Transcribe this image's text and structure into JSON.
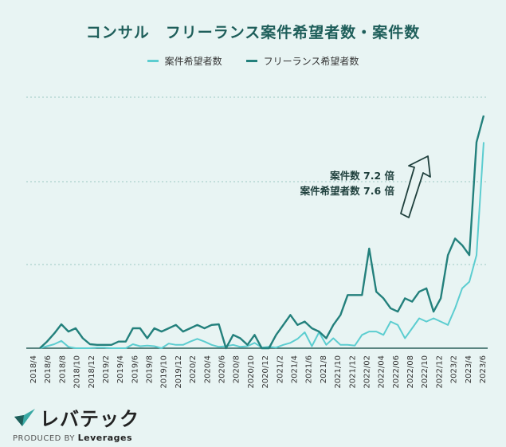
{
  "chart_data": {
    "type": "line",
    "title": "コンサル　フリーランス案件希望者数・案件数",
    "series": [
      {
        "name": "案件希望者数",
        "color": "#5ccdd0",
        "values": [
          0,
          0.3,
          0.6,
          1.1,
          0.2,
          0,
          0,
          0,
          0.1,
          0.1,
          0,
          0,
          0,
          0.6,
          0.3,
          0.4,
          0.3,
          0,
          0.7,
          0.5,
          0.5,
          1.0,
          1.4,
          1.0,
          0.5,
          0.2,
          0.3,
          0.5,
          0.2,
          0.3,
          0.8,
          0.1,
          0.2,
          0.1,
          0.5,
          0.8,
          1.4,
          2.4,
          0.3,
          2.4,
          0.5,
          1.5,
          0.5,
          0.5,
          0.4,
          2.0,
          2.5,
          2.5,
          2.0,
          4.0,
          3.5,
          1.5,
          3.0,
          4.5,
          4.0,
          4.5,
          4.0,
          3.5,
          6.0,
          9.0,
          10.0,
          14.0,
          31.0
        ]
      },
      {
        "name": "フリーランス希望者数",
        "color": "#23807c",
        "values": [
          0,
          1.0,
          2.2,
          3.6,
          2.5,
          3.0,
          1.5,
          0.6,
          0.5,
          0.5,
          0.5,
          1.0,
          1.0,
          3.0,
          3.0,
          1.5,
          3.0,
          2.5,
          3.0,
          3.5,
          2.5,
          3.0,
          3.5,
          3.0,
          3.5,
          3.6,
          0,
          2.0,
          1.5,
          0.5,
          2.0,
          0,
          0,
          2.0,
          3.5,
          5.0,
          3.5,
          4.0,
          3.0,
          2.5,
          1.5,
          3.5,
          5.0,
          8.0,
          8.0,
          8.0,
          15.0,
          8.5,
          7.5,
          6.0,
          5.5,
          7.5,
          7.0,
          8.5,
          9.0,
          5.5,
          7.5,
          14.0,
          16.5,
          15.5,
          14.0,
          31.0,
          35.0
        ]
      }
    ],
    "x_labels": [
      "2018/4",
      "2018/6",
      "2018/8",
      "2018/10",
      "2018/12",
      "2019/2",
      "2019/4",
      "2019/6",
      "2019/8",
      "2019/10",
      "2019/12",
      "2020/2",
      "2020/4",
      "2020/6",
      "2020/8",
      "2020/10",
      "2020/12",
      "2021/2",
      "2021/4",
      "2021/6",
      "2021/8",
      "2021/10",
      "2021/12",
      "2022/02",
      "2022/04",
      "2022/06",
      "2022/08",
      "2022/10",
      "2022/12",
      "2023/2",
      "2023/4",
      "2023/6"
    ],
    "ylim": [
      0,
      38
    ],
    "grid": true,
    "legend_position": "top",
    "annotations": [
      "案件数 7.2 倍",
      "案件希望者数 7.6 倍"
    ]
  },
  "logo": {
    "name": "レバテック",
    "produced_by": "PRODUCED BY",
    "company": "Leverages"
  }
}
